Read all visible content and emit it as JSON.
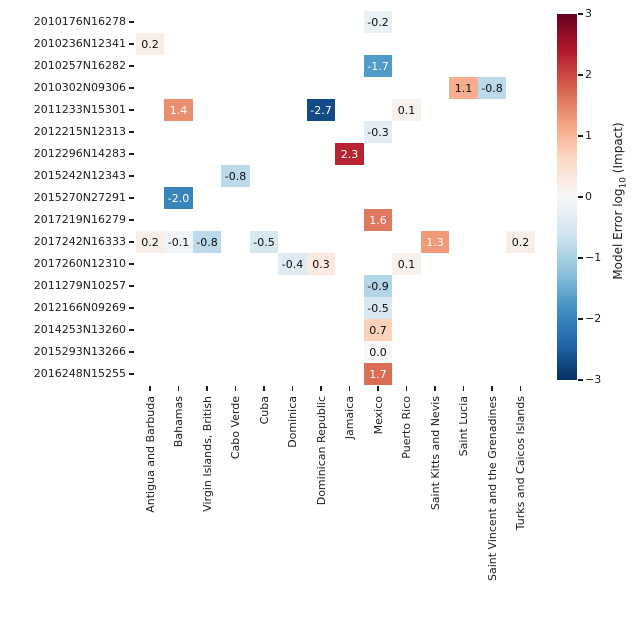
{
  "chart_data": {
    "type": "heatmap",
    "colormap": "RdBu_r",
    "vmin": -3,
    "vmax": 3,
    "grid": false,
    "rows": [
      "2010176N16278",
      "2010236N12341",
      "2010257N16282",
      "2010302N09306",
      "2011233N15301",
      "2012215N12313",
      "2012296N14283",
      "2015242N12343",
      "2015270N27291",
      "2017219N16279",
      "2017242N16333",
      "2017260N12310",
      "2011279N10257",
      "2012166N09269",
      "2014253N13260",
      "2015293N13266",
      "2016248N15255"
    ],
    "columns": [
      "Antigua and Barbuda",
      "Bahamas",
      "Virgin Islands, British",
      "Cabo Verde",
      "Cuba",
      "Dominica",
      "Dominican Republic",
      "Jamaica",
      "Mexico",
      "Puerto Rico",
      "Saint Kitts and Nevis",
      "Saint Lucia",
      "Saint Vincent and the Grenadines",
      "Turks and Caicos Islands"
    ],
    "cells": [
      {
        "row": "2010176N16278",
        "col": "Mexico",
        "value": -0.2
      },
      {
        "row": "2010236N12341",
        "col": "Antigua and Barbuda",
        "value": 0.2
      },
      {
        "row": "2010257N16282",
        "col": "Mexico",
        "value": -1.7
      },
      {
        "row": "2010302N09306",
        "col": "Saint Lucia",
        "value": 1.1
      },
      {
        "row": "2010302N09306",
        "col": "Saint Vincent and the Grenadines",
        "value": -0.8
      },
      {
        "row": "2011233N15301",
        "col": "Bahamas",
        "value": 1.4
      },
      {
        "row": "2011233N15301",
        "col": "Dominican Republic",
        "value": -2.7
      },
      {
        "row": "2011233N15301",
        "col": "Puerto Rico",
        "value": 0.1
      },
      {
        "row": "2012215N12313",
        "col": "Mexico",
        "value": -0.3
      },
      {
        "row": "2012296N14283",
        "col": "Jamaica",
        "value": 2.3
      },
      {
        "row": "2015242N12343",
        "col": "Cabo Verde",
        "value": -0.8
      },
      {
        "row": "2015270N27291",
        "col": "Bahamas",
        "value": -2.0
      },
      {
        "row": "2017219N16279",
        "col": "Mexico",
        "value": 1.6
      },
      {
        "row": "2017242N16333",
        "col": "Antigua and Barbuda",
        "value": 0.2
      },
      {
        "row": "2017242N16333",
        "col": "Bahamas",
        "value": -0.1
      },
      {
        "row": "2017242N16333",
        "col": "Virgin Islands, British",
        "value": -0.8
      },
      {
        "row": "2017242N16333",
        "col": "Cuba",
        "value": -0.5
      },
      {
        "row": "2017242N16333",
        "col": "Saint Kitts and Nevis",
        "value": 1.3
      },
      {
        "row": "2017242N16333",
        "col": "Turks and Caicos Islands",
        "value": 0.2
      },
      {
        "row": "2017260N12310",
        "col": "Dominica",
        "value": -0.4
      },
      {
        "row": "2017260N12310",
        "col": "Dominican Republic",
        "value": 0.3
      },
      {
        "row": "2017260N12310",
        "col": "Puerto Rico",
        "value": 0.1
      },
      {
        "row": "2011279N10257",
        "col": "Mexico",
        "value": -0.9
      },
      {
        "row": "2012166N09269",
        "col": "Mexico",
        "value": -0.5
      },
      {
        "row": "2014253N13260",
        "col": "Mexico",
        "value": 0.7
      },
      {
        "row": "2015293N13266",
        "col": "Mexico",
        "value": 0.0
      },
      {
        "row": "2016248N15255",
        "col": "Mexico",
        "value": 1.7
      }
    ],
    "colorbar": {
      "label_prefix": "Model Error log",
      "label_sub": "10",
      "label_suffix": " (Impact)",
      "ticks": [
        "3",
        "2",
        "1",
        "0",
        "−1",
        "−2",
        "−3"
      ],
      "tick_values": [
        3,
        2,
        1,
        0,
        -1,
        -2,
        -3
      ],
      "gradient_colors": [
        "#67001f",
        "#b2182b",
        "#d6604d",
        "#f4a582",
        "#fddbc7",
        "#f7f7f7",
        "#d1e5f0",
        "#92c5de",
        "#4393c3",
        "#2166ac",
        "#053061"
      ]
    }
  }
}
